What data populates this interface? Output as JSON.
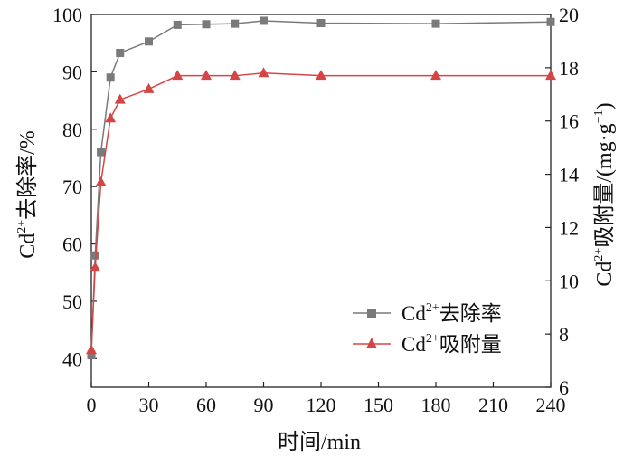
{
  "chart_data": {
    "type": "line",
    "xlabel": "时间/min",
    "ylabel_left": {
      "prefix": "Cd",
      "sup": "2+",
      "suffix": "去除率/%"
    },
    "ylabel_right": {
      "prefix": "Cd",
      "sup": "2+",
      "mid": "吸附量/(mg·g",
      "sup2": "−1",
      "suffix": ")"
    },
    "xlim": [
      0,
      240
    ],
    "ylim_left": [
      35,
      100
    ],
    "ylim_right": [
      6,
      20
    ],
    "x_ticks": [
      "0",
      "30",
      "60",
      "90",
      "120",
      "150",
      "180",
      "210",
      "240"
    ],
    "y_left_ticks": [
      "40",
      "50",
      "60",
      "70",
      "80",
      "90",
      "100"
    ],
    "y_right_ticks": [
      "6",
      "8",
      "10",
      "12",
      "14",
      "16",
      "18",
      "20"
    ],
    "grid": false,
    "legend_position": "lower-right",
    "series": [
      {
        "name": "Cd2+去除率",
        "label": {
          "prefix": "Cd",
          "sup": "2+",
          "suffix": "去除率"
        },
        "axis": "left",
        "marker": "square",
        "color": "#7a7a7a",
        "x": [
          0,
          2,
          5,
          10,
          15,
          30,
          45,
          60,
          75,
          90,
          120,
          180,
          240
        ],
        "y": [
          40.6,
          58.0,
          76.0,
          89.0,
          93.3,
          95.3,
          98.2,
          98.3,
          98.4,
          98.9,
          98.5,
          98.4,
          98.7
        ]
      },
      {
        "name": "Cd2+吸附量",
        "label": {
          "prefix": "Cd",
          "sup": "2+",
          "suffix": "吸附量"
        },
        "axis": "right",
        "marker": "triangle",
        "color": "#d64545",
        "x": [
          0,
          2,
          5,
          10,
          15,
          30,
          45,
          60,
          75,
          90,
          120,
          180,
          240
        ],
        "y": [
          7.4,
          10.5,
          13.7,
          16.1,
          16.8,
          17.2,
          17.7,
          17.7,
          17.7,
          17.8,
          17.7,
          17.7,
          17.7
        ]
      }
    ]
  }
}
